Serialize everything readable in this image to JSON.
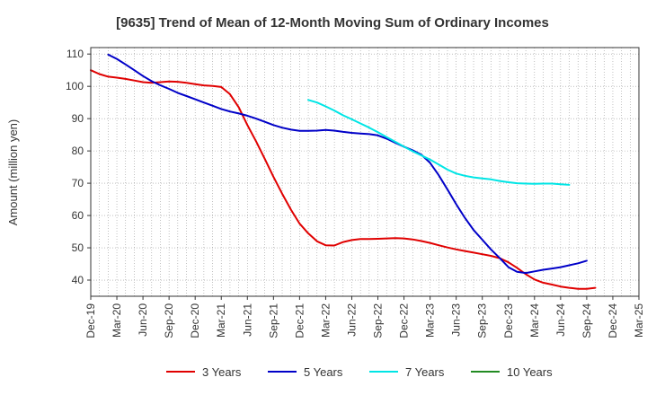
{
  "chart_data": {
    "type": "line",
    "title": "[9635]  Trend of Mean of 12-Month Moving Sum of Ordinary Incomes",
    "xlabel": "",
    "ylabel": "Amount (million yen)",
    "ylim": [
      35,
      112
    ],
    "yticks": [
      40,
      50,
      60,
      70,
      80,
      90,
      100,
      110
    ],
    "categories": [
      "Dec-19",
      "Mar-20",
      "Jun-20",
      "Sep-20",
      "Dec-20",
      "Mar-21",
      "Jun-21",
      "Sep-21",
      "Dec-21",
      "Mar-22",
      "Jun-22",
      "Sep-22",
      "Dec-22",
      "Mar-23",
      "Jun-23",
      "Sep-23",
      "Dec-23",
      "Mar-24",
      "Jun-24",
      "Sep-24",
      "Dec-24",
      "Mar-25"
    ],
    "grid": true,
    "legend_position": "bottom",
    "series": [
      {
        "name": "3 Years",
        "color": "#e00000",
        "points": [
          [
            0,
            105.0
          ],
          [
            0.33,
            103.8
          ],
          [
            0.67,
            103.0
          ],
          [
            1,
            102.7
          ],
          [
            1.33,
            102.3
          ],
          [
            1.67,
            101.8
          ],
          [
            2,
            101.3
          ],
          [
            2.33,
            101.1
          ],
          [
            2.67,
            101.3
          ],
          [
            3,
            101.5
          ],
          [
            3.33,
            101.4
          ],
          [
            3.67,
            101.1
          ],
          [
            4,
            100.7
          ],
          [
            4.33,
            100.3
          ],
          [
            4.67,
            100.1
          ],
          [
            5,
            99.8
          ],
          [
            5.33,
            97.6
          ],
          [
            5.67,
            93.5
          ],
          [
            6,
            88.0
          ],
          [
            6.33,
            83.0
          ],
          [
            6.67,
            77.5
          ],
          [
            7,
            72.0
          ],
          [
            7.33,
            66.8
          ],
          [
            7.67,
            61.8
          ],
          [
            8,
            57.5
          ],
          [
            8.33,
            54.5
          ],
          [
            8.67,
            52.0
          ],
          [
            9,
            50.8
          ],
          [
            9.33,
            50.7
          ],
          [
            9.67,
            51.8
          ],
          [
            10,
            52.4
          ],
          [
            10.33,
            52.7
          ],
          [
            10.67,
            52.7
          ],
          [
            11,
            52.8
          ],
          [
            11.33,
            52.9
          ],
          [
            11.67,
            53.0
          ],
          [
            12,
            52.9
          ],
          [
            12.33,
            52.6
          ],
          [
            12.67,
            52.1
          ],
          [
            13,
            51.5
          ],
          [
            13.33,
            50.8
          ],
          [
            13.67,
            50.1
          ],
          [
            14,
            49.5
          ],
          [
            14.33,
            49.0
          ],
          [
            14.67,
            48.5
          ],
          [
            15,
            48.0
          ],
          [
            15.33,
            47.5
          ],
          [
            15.67,
            46.8
          ],
          [
            16,
            45.5
          ],
          [
            16.33,
            43.8
          ],
          [
            16.67,
            41.8
          ],
          [
            17,
            40.2
          ],
          [
            17.33,
            39.2
          ],
          [
            17.67,
            38.6
          ],
          [
            18,
            38.0
          ],
          [
            18.33,
            37.6
          ],
          [
            18.67,
            37.3
          ],
          [
            19,
            37.3
          ],
          [
            19.33,
            37.6
          ]
        ]
      },
      {
        "name": "5 Years",
        "color": "#0000c8",
        "points": [
          [
            0.67,
            109.8
          ],
          [
            1,
            108.5
          ],
          [
            1.33,
            106.8
          ],
          [
            1.67,
            105.0
          ],
          [
            2,
            103.2
          ],
          [
            2.33,
            101.6
          ],
          [
            2.67,
            100.3
          ],
          [
            3,
            99.2
          ],
          [
            3.33,
            98.0
          ],
          [
            3.67,
            97.0
          ],
          [
            4,
            96.0
          ],
          [
            4.33,
            95.0
          ],
          [
            4.67,
            94.0
          ],
          [
            5,
            93.0
          ],
          [
            5.33,
            92.2
          ],
          [
            5.67,
            91.6
          ],
          [
            6,
            90.9
          ],
          [
            6.33,
            90.0
          ],
          [
            6.67,
            89.0
          ],
          [
            7,
            88.0
          ],
          [
            7.33,
            87.2
          ],
          [
            7.67,
            86.6
          ],
          [
            8,
            86.2
          ],
          [
            8.33,
            86.2
          ],
          [
            8.67,
            86.3
          ],
          [
            9,
            86.5
          ],
          [
            9.33,
            86.3
          ],
          [
            9.67,
            85.9
          ],
          [
            10,
            85.6
          ],
          [
            10.33,
            85.4
          ],
          [
            10.67,
            85.2
          ],
          [
            11,
            84.8
          ],
          [
            11.33,
            83.8
          ],
          [
            11.67,
            82.5
          ],
          [
            12,
            81.3
          ],
          [
            12.33,
            80.2
          ],
          [
            12.67,
            78.8
          ],
          [
            13,
            76.3
          ],
          [
            13.33,
            72.5
          ],
          [
            13.67,
            68.0
          ],
          [
            14,
            63.5
          ],
          [
            14.33,
            59.3
          ],
          [
            14.67,
            55.5
          ],
          [
            15,
            52.5
          ],
          [
            15.33,
            49.5
          ],
          [
            15.67,
            46.8
          ],
          [
            16,
            44.0
          ],
          [
            16.33,
            42.6
          ],
          [
            16.67,
            42.2
          ],
          [
            17,
            42.7
          ],
          [
            17.33,
            43.2
          ],
          [
            17.67,
            43.6
          ],
          [
            18,
            44.0
          ],
          [
            18.33,
            44.6
          ],
          [
            18.67,
            45.2
          ],
          [
            19,
            46.0
          ]
        ]
      },
      {
        "name": "7 Years",
        "color": "#00e5e5",
        "points": [
          [
            8.33,
            95.8
          ],
          [
            8.67,
            95.0
          ],
          [
            9,
            93.8
          ],
          [
            9.33,
            92.5
          ],
          [
            9.67,
            91.0
          ],
          [
            10,
            89.8
          ],
          [
            10.33,
            88.5
          ],
          [
            10.67,
            87.2
          ],
          [
            11,
            85.8
          ],
          [
            11.33,
            84.3
          ],
          [
            11.67,
            82.8
          ],
          [
            12,
            81.3
          ],
          [
            12.33,
            79.9
          ],
          [
            12.67,
            78.6
          ],
          [
            13,
            77.3
          ],
          [
            13.33,
            75.8
          ],
          [
            13.67,
            74.2
          ],
          [
            14,
            73.0
          ],
          [
            14.33,
            72.3
          ],
          [
            14.67,
            71.8
          ],
          [
            15,
            71.5
          ],
          [
            15.33,
            71.2
          ],
          [
            15.67,
            70.7
          ],
          [
            16,
            70.3
          ],
          [
            16.33,
            70.0
          ],
          [
            16.67,
            69.9
          ],
          [
            17,
            69.8
          ],
          [
            17.33,
            69.9
          ],
          [
            17.67,
            69.9
          ],
          [
            18,
            69.7
          ],
          [
            18.33,
            69.5
          ]
        ]
      },
      {
        "name": "10 Years",
        "color": "#228b22",
        "points": []
      }
    ]
  }
}
